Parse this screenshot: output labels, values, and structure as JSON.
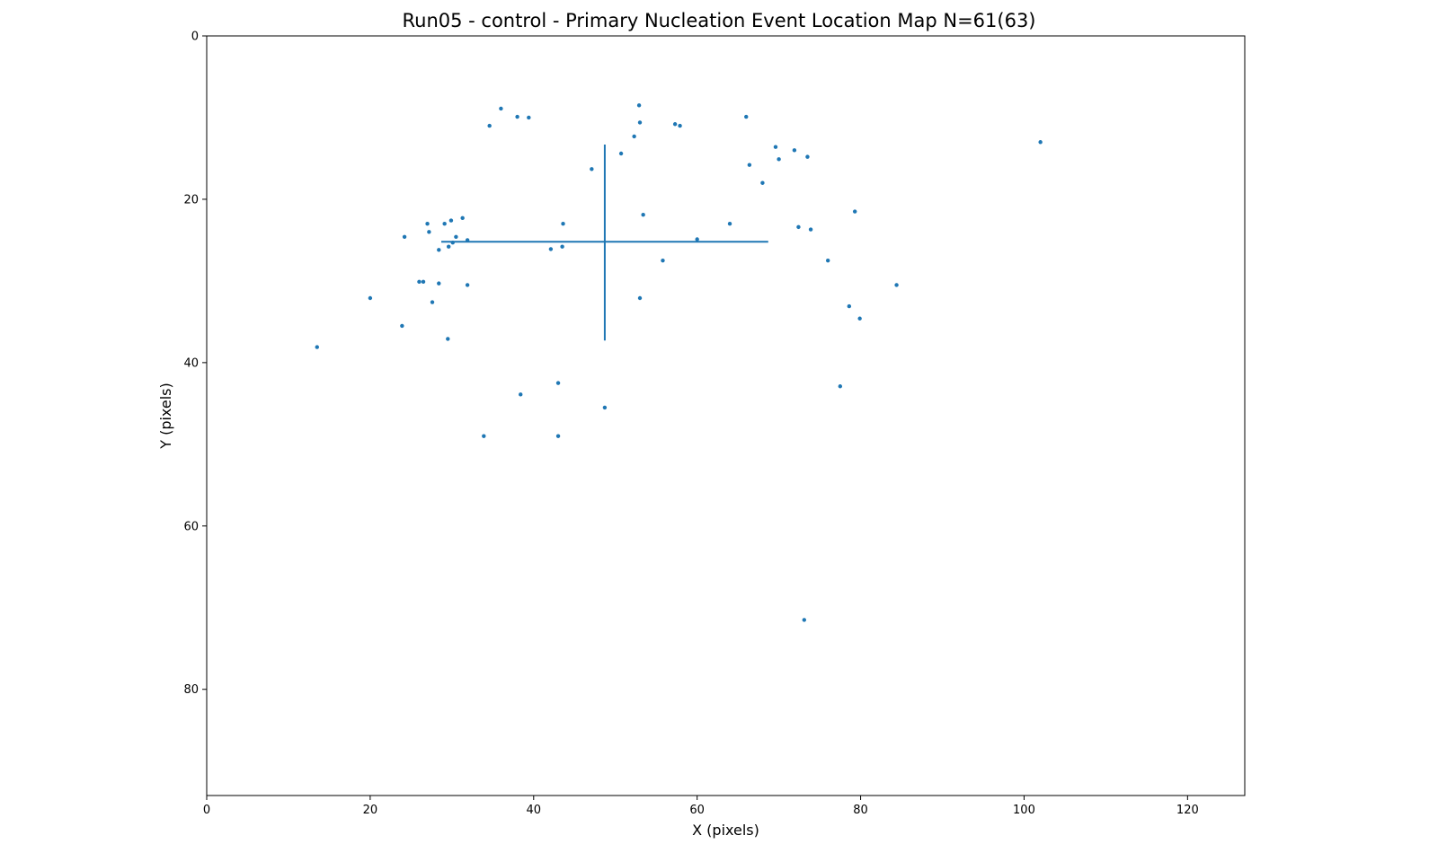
{
  "chart_data": {
    "type": "scatter",
    "title": "Run05 - control - Primary Nucleation Event Location Map N=61(63)",
    "xlabel": "X (pixels)",
    "ylabel": "Y (pixels)",
    "xlim": [
      0,
      127
    ],
    "ylim": [
      93,
      0
    ],
    "y_inverted": true,
    "grid": false,
    "legend": "none",
    "x_ticks": [
      0,
      20,
      40,
      60,
      80,
      100,
      120
    ],
    "y_ticks": [
      0,
      20,
      40,
      60,
      80
    ],
    "x_tick_labels": [
      "0",
      "20",
      "40",
      "60",
      "80",
      "100",
      "120"
    ],
    "y_tick_labels": [
      "0",
      "20",
      "40",
      "60",
      "80"
    ],
    "color": "#1f77b4",
    "crosshair": {
      "center": [
        48.7,
        25.2
      ],
      "x_range": [
        28.7,
        68.7
      ],
      "y_range": [
        13.3,
        37.3
      ]
    },
    "points": [
      [
        36.0,
        8.9
      ],
      [
        38.0,
        9.9
      ],
      [
        39.4,
        10.0
      ],
      [
        34.6,
        11.0
      ],
      [
        52.9,
        8.5
      ],
      [
        53.0,
        10.6
      ],
      [
        52.3,
        12.3
      ],
      [
        57.3,
        10.8
      ],
      [
        57.9,
        11.0
      ],
      [
        50.7,
        14.4
      ],
      [
        47.1,
        16.3
      ],
      [
        66.0,
        9.9
      ],
      [
        69.6,
        13.6
      ],
      [
        71.9,
        14.0
      ],
      [
        70.0,
        15.1
      ],
      [
        73.5,
        14.8
      ],
      [
        66.4,
        15.8
      ],
      [
        68.0,
        18.0
      ],
      [
        102.0,
        13.0
      ],
      [
        53.4,
        21.9
      ],
      [
        43.6,
        23.0
      ],
      [
        64.0,
        23.0
      ],
      [
        72.4,
        23.4
      ],
      [
        73.9,
        23.7
      ],
      [
        79.3,
        21.5
      ],
      [
        60.0,
        24.9
      ],
      [
        55.8,
        27.5
      ],
      [
        76.0,
        27.5
      ],
      [
        84.4,
        30.5
      ],
      [
        78.6,
        33.1
      ],
      [
        79.9,
        34.6
      ],
      [
        53.0,
        32.1
      ],
      [
        42.1,
        26.1
      ],
      [
        43.5,
        25.8
      ],
      [
        24.2,
        24.6
      ],
      [
        27.0,
        23.0
      ],
      [
        27.2,
        24.0
      ],
      [
        29.1,
        23.0
      ],
      [
        29.9,
        22.6
      ],
      [
        31.3,
        22.3
      ],
      [
        30.5,
        24.6
      ],
      [
        31.9,
        25.0
      ],
      [
        30.1,
        25.3
      ],
      [
        29.6,
        25.8
      ],
      [
        28.4,
        26.2
      ],
      [
        26.0,
        30.1
      ],
      [
        26.5,
        30.1
      ],
      [
        28.4,
        30.3
      ],
      [
        31.9,
        30.5
      ],
      [
        27.6,
        32.6
      ],
      [
        20.0,
        32.1
      ],
      [
        23.9,
        35.5
      ],
      [
        13.5,
        38.1
      ],
      [
        29.5,
        37.1
      ],
      [
        43.0,
        42.5
      ],
      [
        38.4,
        43.9
      ],
      [
        48.7,
        45.5
      ],
      [
        33.9,
        49.0
      ],
      [
        43.0,
        49.0
      ],
      [
        77.5,
        42.9
      ],
      [
        73.1,
        71.5
      ]
    ]
  }
}
